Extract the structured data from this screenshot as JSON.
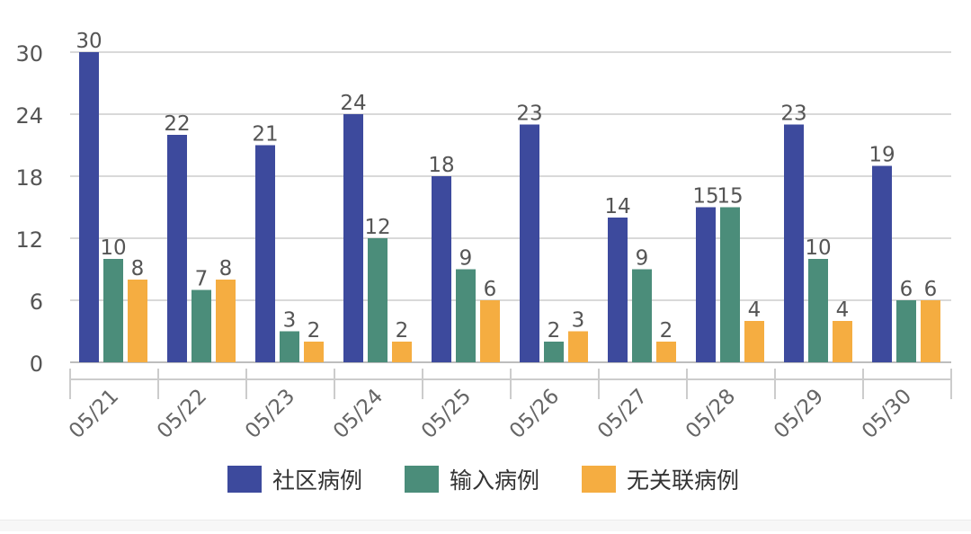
{
  "chart_data": {
    "type": "bar",
    "categories": [
      "05/21",
      "05/22",
      "05/23",
      "05/24",
      "05/25",
      "05/26",
      "05/27",
      "05/28",
      "05/29",
      "05/30"
    ],
    "series": [
      {
        "name": "社区病例",
        "color": "#3d4a9d",
        "values": [
          30,
          22,
          21,
          24,
          18,
          23,
          14,
          15,
          23,
          19
        ]
      },
      {
        "name": "输入病例",
        "color": "#4b8d7a",
        "values": [
          10,
          7,
          3,
          12,
          9,
          2,
          9,
          15,
          10,
          6
        ]
      },
      {
        "name": "无关联病例",
        "color": "#f5ad41",
        "values": [
          8,
          8,
          2,
          2,
          6,
          3,
          2,
          4,
          4,
          6
        ]
      }
    ],
    "y_ticks": [
      0,
      6,
      12,
      18,
      24,
      30
    ],
    "ylim": [
      0,
      30
    ],
    "title": "",
    "xlabel": "",
    "ylabel": "",
    "grid": true,
    "legend_position": "bottom-center"
  }
}
